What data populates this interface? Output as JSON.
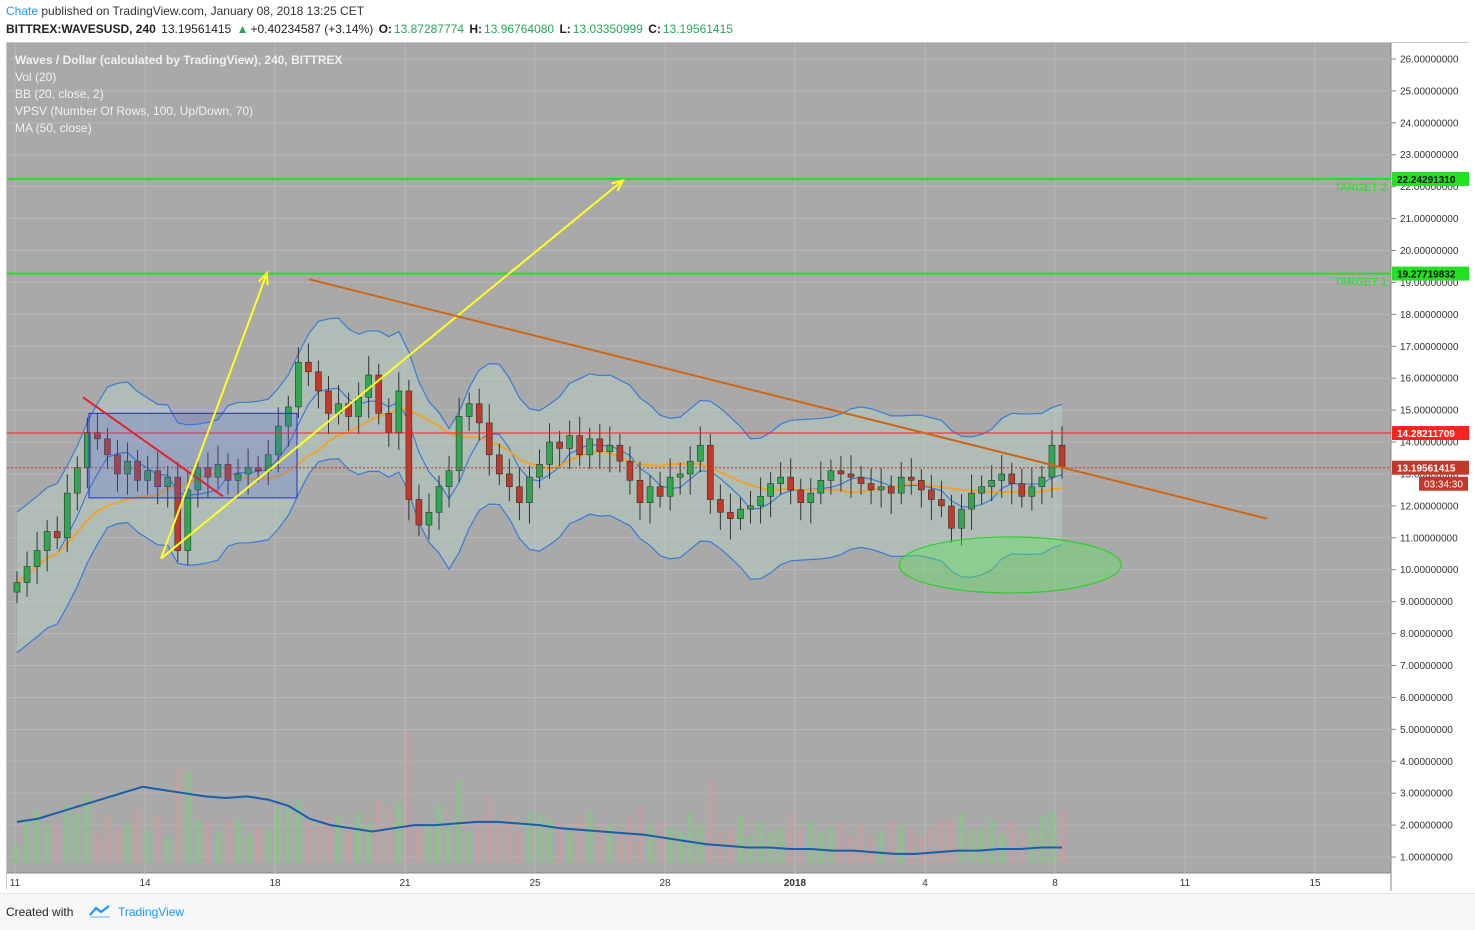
{
  "header": {
    "author": "Chate",
    "published": "published on TradingView.com, January 08, 2018 13:25 CET",
    "symbol": "BITTREX:WAVESUSD, 240",
    "last": "13.19561415",
    "change": "+0.40234587 (+3.14%)",
    "o_label": "O:",
    "o": "13.87287774",
    "h_label": "H:",
    "h": "13.96764080",
    "l_label": "L:",
    "l": "13.03350999",
    "c_label": "C:",
    "c": "13.19561415"
  },
  "legend": {
    "title": "Waves / Dollar (calculated by TradingView), 240, BITTREX",
    "vol": "Vol (20)",
    "bb": "BB (20, close, 2)",
    "vpsv": "VPSV (Number Of Rows, 100, Up/Down, 70)",
    "ma": "MA (50, close)"
  },
  "footer": {
    "created": "Created with",
    "brand": "TradingView"
  },
  "colors": {
    "background": "#a9a9a9",
    "up": "#2fa84f",
    "down": "#c0392b",
    "bb": "#3a7bd5",
    "ma": "#f4a020",
    "target": "#22e022",
    "trend": "#c8691a",
    "arrow": "#ffff22",
    "resistance": "#ff2020",
    "volume_ma": "#1a5ea8"
  },
  "chart_data": {
    "type": "candlestick",
    "ylim": [
      0.5,
      26.5
    ],
    "yticks": [
      "26.00000000",
      "25.00000000",
      "24.00000000",
      "23.00000000",
      "22.00000000",
      "21.00000000",
      "20.00000000",
      "19.00000000",
      "18.00000000",
      "17.00000000",
      "16.00000000",
      "15.00000000",
      "14.00000000",
      "13.00000000",
      "12.00000000",
      "11.00000000",
      "10.00000000",
      "9.00000000",
      "8.00000000",
      "7.00000000",
      "6.00000000",
      "5.00000000",
      "4.00000000",
      "3.00000000",
      "2.00000000",
      "1.00000000"
    ],
    "xticks": [
      "11",
      "14",
      "18",
      "21",
      "25",
      "28",
      "2018",
      "4",
      "8",
      "11",
      "15"
    ],
    "levels": [
      {
        "label": "TARGET 2",
        "value": 22.2429131,
        "text": "22.24291310",
        "color": "#22e022"
      },
      {
        "label": "TARGET 1",
        "value": 19.27719832,
        "text": "19.27719832",
        "color": "#22e022"
      },
      {
        "label": "",
        "value": 14.28211709,
        "text": "14.28211709",
        "color": "#ff2020"
      }
    ],
    "last_price": {
      "value": 13.19561415,
      "text": "13.19561415",
      "countdown": "03:34:30"
    },
    "close_series": [
      9.6,
      10.1,
      10.6,
      11.2,
      11.0,
      12.4,
      13.2,
      14.3,
      14.1,
      13.6,
      13.0,
      13.4,
      12.8,
      13.1,
      12.6,
      12.9,
      10.6,
      12.5,
      13.2,
      12.9,
      13.3,
      12.8,
      13.0,
      13.2,
      13.1,
      13.6,
      14.5,
      15.1,
      16.5,
      16.2,
      15.6,
      14.9,
      15.2,
      14.8,
      15.4,
      16.1,
      14.9,
      14.3,
      15.6,
      12.2,
      11.4,
      11.8,
      12.6,
      13.1,
      14.8,
      15.2,
      14.6,
      13.6,
      13.0,
      12.6,
      12.1,
      12.9,
      13.3,
      14.0,
      13.8,
      14.2,
      13.6,
      14.1,
      13.7,
      13.9,
      13.4,
      12.8,
      12.1,
      12.6,
      12.3,
      12.9,
      13.0,
      13.4,
      13.9,
      12.2,
      11.8,
      11.6,
      11.9,
      12.0,
      12.3,
      12.7,
      12.9,
      12.5,
      12.1,
      12.4,
      12.8,
      13.1,
      13.0,
      12.9,
      12.7,
      12.5,
      12.6,
      12.4,
      12.9,
      12.8,
      12.5,
      12.2,
      12.0,
      11.3,
      11.9,
      12.4,
      12.6,
      12.8,
      13.0,
      12.7,
      12.3,
      12.6,
      12.9,
      13.9,
      13.2
    ],
    "volume_ma": [
      2.1,
      2.2,
      2.4,
      2.6,
      2.8,
      3.0,
      3.2,
      3.1,
      3.0,
      2.9,
      2.85,
      2.9,
      2.8,
      2.6,
      2.2,
      2.0,
      1.9,
      1.8,
      1.9,
      2.0,
      2.0,
      2.05,
      2.1,
      2.1,
      2.05,
      2.0,
      1.9,
      1.85,
      1.8,
      1.75,
      1.7,
      1.6,
      1.5,
      1.4,
      1.35,
      1.3,
      1.3,
      1.25,
      1.25,
      1.2,
      1.2,
      1.15,
      1.1,
      1.1,
      1.15,
      1.2,
      1.2,
      1.25,
      1.25,
      1.3,
      1.3
    ]
  }
}
